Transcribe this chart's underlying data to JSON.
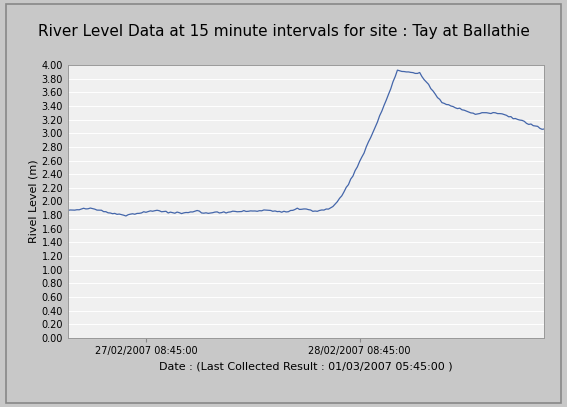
{
  "title": "River Level Data at 15 minute intervals for site : Tay at Ballathie",
  "ylabel": "Rivel Level (m)",
  "xlabel": "Date : (Last Collected Result : 01/03/2007 05:45:00 )",
  "xtick_labels": [
    "27/02/2007 08:45:00",
    "28/02/2007 08:45:00"
  ],
  "ytick_min": 0.0,
  "ytick_max": 4.0,
  "ytick_step": 0.2,
  "line_color": "#4466aa",
  "plot_bg_color": "#f0f0f0",
  "outer_bg_color": "#c8c8c8",
  "panel_bg_color": "#d0d0d0",
  "title_fontsize": 11,
  "axis_fontsize": 7,
  "xlabel_fontsize": 8,
  "ylabel_fontsize": 8,
  "x_tick1_hour": 8.75,
  "x_tick2_hour": 32.75,
  "total_hours": 53.5
}
